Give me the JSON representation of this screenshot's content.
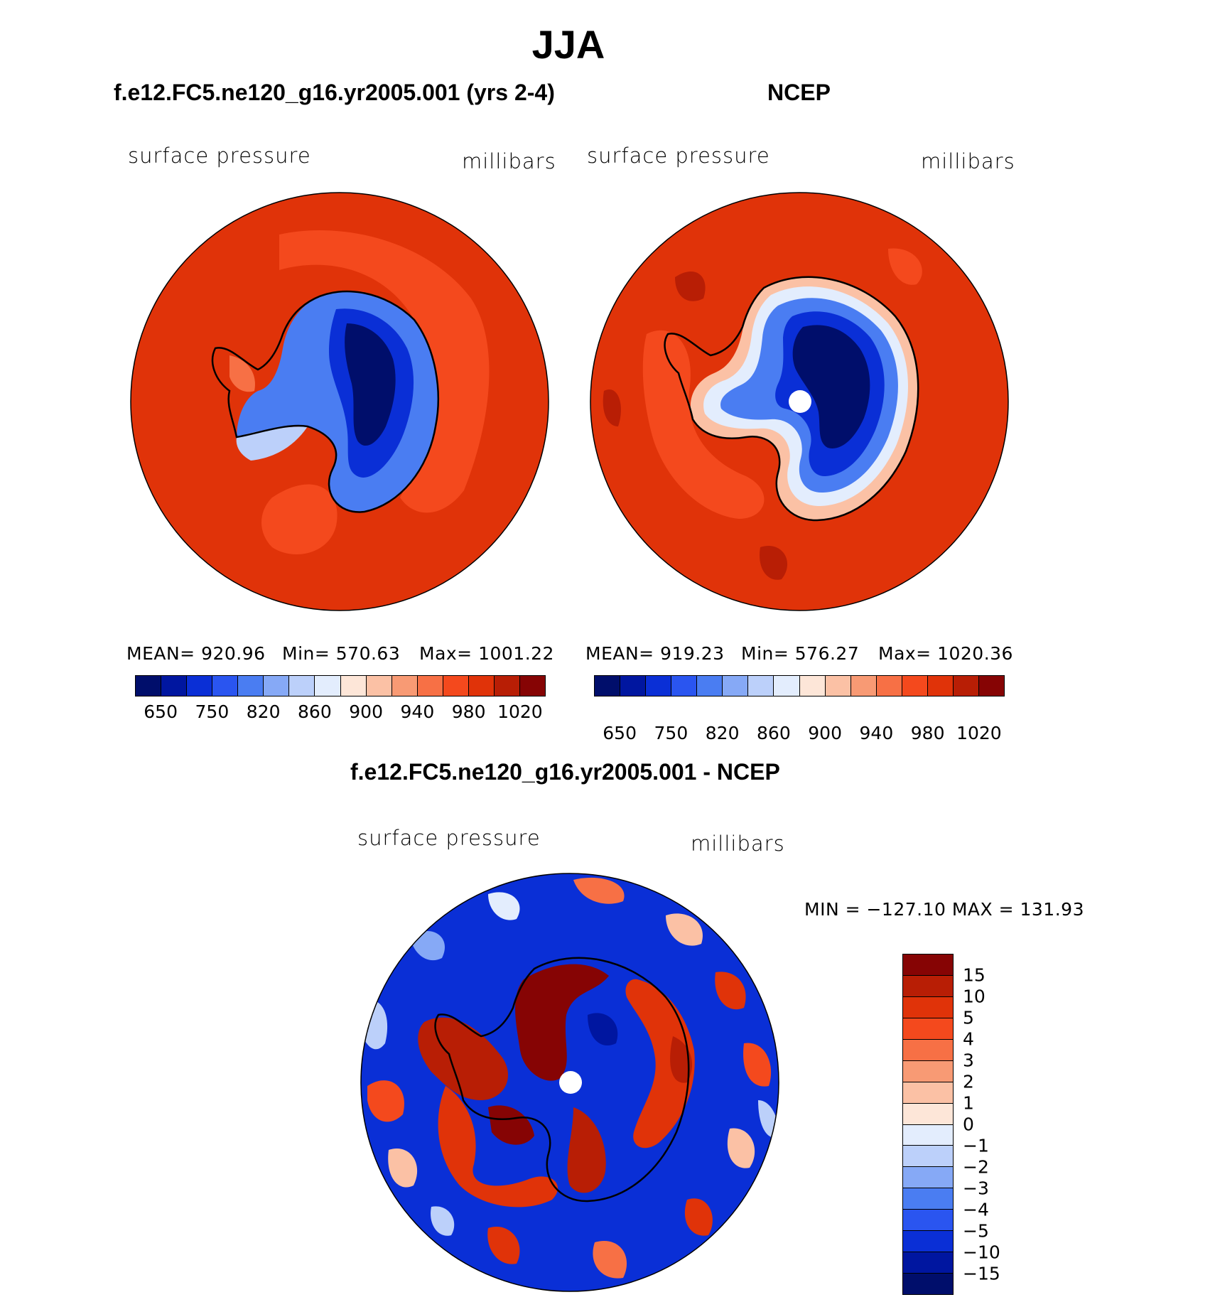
{
  "title": "JJA",
  "panels": [
    {
      "title": "f.e12.FC5.ne120_g16.yr2005.001 (yrs 2-4)",
      "left_label": "surface pressure",
      "right_label": "millibars",
      "stats": {
        "mean": "MEAN= 920.96",
        "min": "Min= 570.63",
        "max": "Max= 1001.22"
      }
    },
    {
      "title": "NCEP",
      "left_label": "surface pressure",
      "right_label": "millibars",
      "stats": {
        "mean": "MEAN= 919.23",
        "min": "Min= 576.27",
        "max": "Max= 1020.36"
      }
    },
    {
      "title": "f.e12.FC5.ne120_g16.yr2005.001 - NCEP",
      "left_label": "surface pressure",
      "right_label": "millibars",
      "stats_text": "MIN = −127.10 MAX = 131.93"
    }
  ],
  "abs_colorbar": {
    "colors": [
      "#000e6b",
      "#0016a0",
      "#0a2fd6",
      "#2a55f0",
      "#4a7df2",
      "#86a9f6",
      "#bcd0fa",
      "#e3edfd",
      "#fde6d8",
      "#fbc1a5",
      "#f89a74",
      "#f77045",
      "#f4491d",
      "#e03309",
      "#b81e05",
      "#860404"
    ],
    "tick_labels": [
      "650",
      "750",
      "820",
      "860",
      "900",
      "940",
      "980",
      "1020"
    ]
  },
  "diff_colorbar": {
    "colors": [
      "#860404",
      "#b81e05",
      "#e03309",
      "#f4491d",
      "#f77045",
      "#f89a74",
      "#fbc1a5",
      "#fde6d8",
      "#e3edfd",
      "#bcd0fa",
      "#86a9f6",
      "#4a7df2",
      "#2a55f0",
      "#0a2fd6",
      "#0016a0",
      "#000e6b"
    ],
    "tick_labels": [
      "15",
      "10",
      "5",
      "4",
      "3",
      "2",
      "1",
      "0",
      "−1",
      "−2",
      "−3",
      "−4",
      "−5",
      "−10",
      "−15"
    ]
  }
}
